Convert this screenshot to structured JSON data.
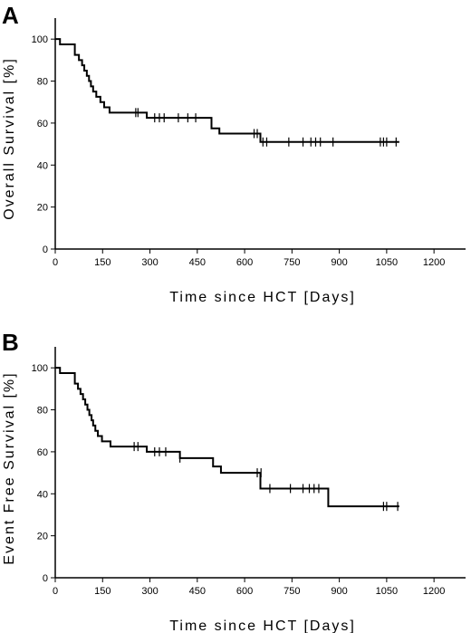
{
  "chart_data": [
    {
      "type": "line",
      "panel": "A",
      "xlabel": "Time since HCT [Days]",
      "ylabel": "Overall Survival [%]",
      "xlim": [
        0,
        1300
      ],
      "ylim": [
        0,
        110
      ],
      "xticks": [
        0,
        150,
        300,
        450,
        600,
        750,
        900,
        1050,
        1200
      ],
      "yticks": [
        0,
        20,
        40,
        60,
        80,
        100
      ],
      "series": [
        {
          "step_x": [
            0,
            15,
            62,
            75,
            85,
            92,
            100,
            107,
            113,
            120,
            130,
            143,
            155,
            172,
            290,
            495,
            520,
            650,
            1090
          ],
          "step_y": [
            100,
            97.5,
            92.5,
            90,
            87.5,
            85,
            82.5,
            80,
            77.5,
            75,
            72.5,
            70,
            67.5,
            65,
            62.5,
            57.5,
            55,
            51,
            51
          ],
          "censored_x": [
            255,
            262,
            315,
            330,
            345,
            390,
            420,
            445,
            630,
            640,
            658,
            670,
            740,
            785,
            810,
            825,
            840,
            880,
            1030,
            1040,
            1050,
            1080
          ],
          "censored_y": [
            65,
            65,
            62.5,
            62.5,
            62.5,
            62.5,
            62.5,
            62.5,
            55,
            55,
            51,
            51,
            51,
            51,
            51,
            51,
            51,
            51,
            51,
            51,
            51,
            51
          ]
        }
      ]
    },
    {
      "type": "line",
      "panel": "B",
      "xlabel": "Time since HCT [Days]",
      "ylabel": "Event Free Survival [%]",
      "xlim": [
        0,
        1300
      ],
      "ylim": [
        0,
        110
      ],
      "xticks": [
        0,
        150,
        300,
        450,
        600,
        750,
        900,
        1050,
        1200
      ],
      "yticks": [
        0,
        20,
        40,
        60,
        80,
        100
      ],
      "series": [
        {
          "step_x": [
            0,
            15,
            62,
            72,
            80,
            88,
            95,
            102,
            108,
            115,
            120,
            127,
            135,
            148,
            175,
            290,
            395,
            500,
            525,
            650,
            865,
            1090
          ],
          "step_y": [
            100,
            97.5,
            92.5,
            90,
            87.5,
            85,
            82.5,
            80,
            77.5,
            75,
            72.5,
            70,
            67.5,
            65,
            62.5,
            60,
            57,
            53,
            50,
            42.5,
            34,
            34
          ],
          "censored_x": [
            250,
            262,
            315,
            330,
            350,
            395,
            640,
            652,
            680,
            745,
            785,
            805,
            820,
            835,
            1040,
            1050,
            1085
          ],
          "censored_y": [
            62.5,
            62.5,
            60,
            60,
            60,
            57,
            50,
            50,
            42.5,
            42.5,
            42.5,
            42.5,
            42.5,
            42.5,
            34,
            34,
            34
          ]
        }
      ]
    }
  ]
}
